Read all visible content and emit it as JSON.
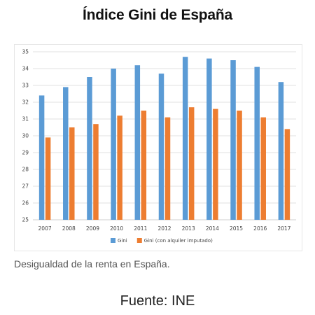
{
  "page": {
    "title": "Índice Gini de España",
    "caption": "Desigualdad de la renta en España.",
    "source": "Fuente: INE"
  },
  "colors": {
    "gini": "#5b9bd5",
    "gini_imputado": "#ed7d31",
    "grid": "#d9d9d9",
    "axis": "#bfbfbf"
  },
  "chart_data": {
    "type": "bar",
    "categories": [
      "2007",
      "2008",
      "2009",
      "2010",
      "2011",
      "2012",
      "2013",
      "2014",
      "2015",
      "2016",
      "2017"
    ],
    "series": [
      {
        "name": "Gini",
        "values": [
          32.4,
          32.9,
          33.5,
          34.0,
          34.2,
          33.7,
          34.7,
          34.6,
          34.5,
          34.1,
          33.2
        ]
      },
      {
        "name": "Gini (con alquiler imputado)",
        "values": [
          29.9,
          30.5,
          30.7,
          31.2,
          31.5,
          31.1,
          31.7,
          31.6,
          31.5,
          31.1,
          30.4
        ]
      }
    ],
    "ylim": [
      25,
      35
    ],
    "yticks": [
      25,
      26,
      27,
      28,
      29,
      30,
      31,
      32,
      33,
      34,
      35
    ],
    "grid": true,
    "legend": "bottom-center"
  }
}
